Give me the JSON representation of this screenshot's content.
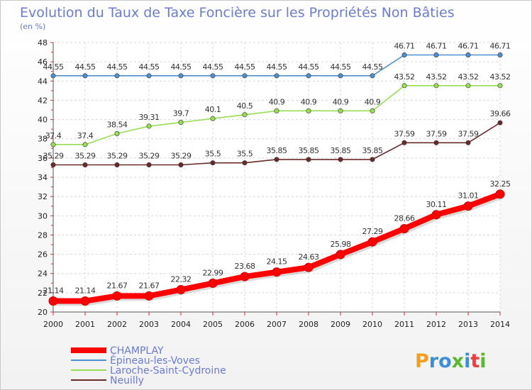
{
  "title": "Evolution du Taux de Taxe Foncière sur les Propriétés Non Bâties",
  "unit": "(en %)",
  "logo_text": "Proxiti",
  "chart_data": {
    "type": "line",
    "title": "Evolution du Taux de Taxe Foncière sur les Propriétés Non Bâties",
    "ylabel": "(en %)",
    "x": [
      2000,
      2001,
      2002,
      2003,
      2004,
      2005,
      2006,
      2007,
      2008,
      2009,
      2010,
      2011,
      2012,
      2013,
      2014
    ],
    "ylim": [
      20,
      48
    ],
    "yticks": [
      20,
      22,
      24,
      26,
      28,
      30,
      32,
      34,
      36,
      38,
      40,
      42,
      44,
      46,
      48
    ],
    "grid": true,
    "legend": "bottom-left",
    "series": [
      {
        "name": "CHAMPLAY",
        "color": "#ff0000",
        "values": [
          21.14,
          21.14,
          21.67,
          21.67,
          22.32,
          22.99,
          23.68,
          24.15,
          24.63,
          25.98,
          27.29,
          28.66,
          30.11,
          31.01,
          32.25
        ],
        "labels": [
          "21.14",
          "21.14",
          "21.67",
          "21.67",
          "22.32",
          "22.99",
          "23.68",
          "24.15",
          "24.63",
          "25.98",
          "27.29",
          "28.66",
          "30.11",
          "31.01",
          "32.25"
        ]
      },
      {
        "name": "Épineau-les-Voves",
        "color": "#4f8fd0",
        "values": [
          44.55,
          44.55,
          44.55,
          44.55,
          44.55,
          44.55,
          44.55,
          44.55,
          44.55,
          44.55,
          44.55,
          46.71,
          46.71,
          46.71,
          46.71
        ],
        "labels": [
          "44.55",
          "44.55",
          "44.55",
          "44.55",
          "44.55",
          "44.55",
          "44.55",
          "44.55",
          "44.55",
          "44.55",
          "44.55",
          "46.71",
          "46.71",
          "46.71",
          "46.71"
        ]
      },
      {
        "name": "Laroche-Saint-Cydroine",
        "color": "#99dd55",
        "values": [
          37.4,
          37.4,
          38.54,
          39.31,
          39.7,
          40.1,
          40.5,
          40.9,
          40.9,
          40.9,
          40.9,
          43.52,
          43.52,
          43.52,
          43.52
        ],
        "labels": [
          "37.4",
          "37.4",
          "38.54",
          "39.31",
          "39.7",
          "40.1",
          "40.5",
          "40.9",
          "40.9",
          "40.9",
          "40.9",
          "43.52",
          "43.52",
          "43.52",
          "43.52"
        ]
      },
      {
        "name": "Neuilly",
        "color": "#6b2a2a",
        "values": [
          35.29,
          35.29,
          35.29,
          35.29,
          35.29,
          35.5,
          35.5,
          35.85,
          35.85,
          35.85,
          35.85,
          37.59,
          37.59,
          37.59,
          39.66
        ],
        "labels": [
          "35.29",
          "35.29",
          "35.29",
          "35.29",
          "35.29",
          "35.5",
          "35.5",
          "35.85",
          "35.85",
          "35.85",
          "35.85",
          "37.59",
          "37.59",
          "37.59",
          "39.66"
        ]
      }
    ]
  }
}
